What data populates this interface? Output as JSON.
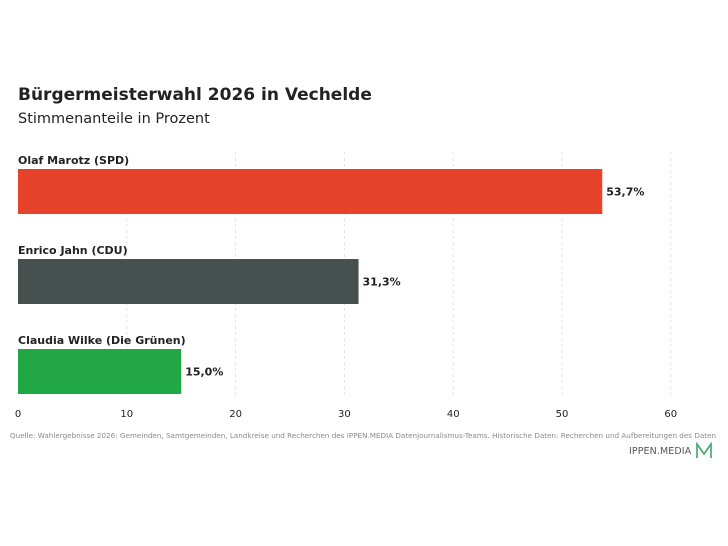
{
  "chart_data": {
    "type": "bar",
    "orientation": "horizontal",
    "title": "Bürgermeisterwahl 2026 in Vechelde",
    "subtitle": "Stimmenanteile in Prozent",
    "categories": [
      "Olaf Marotz (SPD)",
      "Enrico Jahn (CDU)",
      "Claudia Wilke (Die Grünen)"
    ],
    "values": [
      53.7,
      31.3,
      15.0
    ],
    "value_labels": [
      "53,7%",
      "31,3%",
      "15,0%"
    ],
    "colors": [
      "#e5432a",
      "#46504f",
      "#22a745"
    ],
    "xlim": [
      0,
      65
    ],
    "x_ticks": [
      0,
      10,
      20,
      30,
      40,
      50,
      60
    ],
    "x_tick_labels": [
      "0",
      "10",
      "20",
      "30",
      "40",
      "50",
      "60"
    ],
    "grid": "vertical dashed",
    "legend": "none"
  },
  "footer": {
    "source": "Quelle: Wahlergebnisse 2026: Gemeinden, Samtgemeinden, Landkreise und Recherchen des IPPEN.MEDIA Datenjournalismus-Teams. Historische Daten: Recherchen und Aufbereitungen des Daten",
    "brand": "IPPEN.MEDIA",
    "brand_icon": "ippen-media-m-logo"
  },
  "colors": {
    "text": "#222222",
    "grid": "#dddddd",
    "source_text": "#8a8a8a",
    "logo_green": "#3fa66b"
  }
}
